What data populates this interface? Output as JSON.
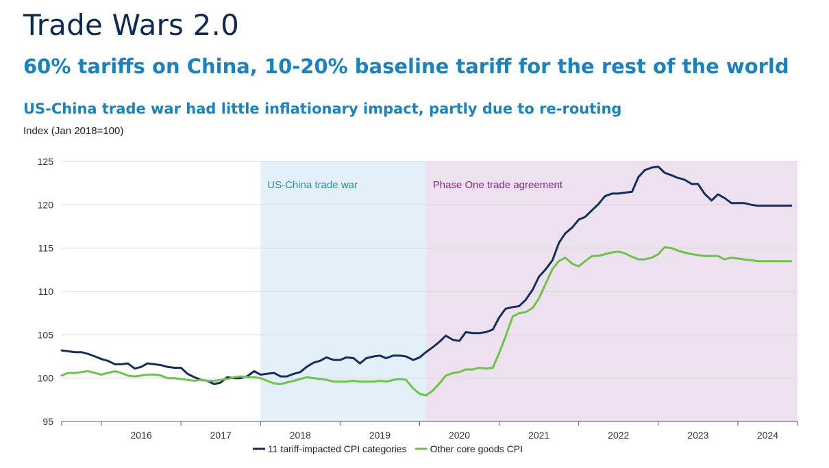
{
  "header": {
    "title": "Trade Wars 2.0",
    "subtitle": "60% tariffs on China, 10-20% baseline tariff for the rest of the world"
  },
  "colors": {
    "title": "#0c2a52",
    "accent": "#1a83bf",
    "series1": "#132d5e",
    "series2": "#6cc24a",
    "trade_war_band": "#e3f0f9",
    "phase_one_band": "#ede0ef",
    "trade_war_text": "#2d8da3",
    "phase_one_text": "#7d2a8a"
  },
  "chart_data": {
    "type": "line",
    "title": "US-China trade war had little inflationary impact, partly due to re-routing",
    "ylabel": "Index (Jan 2018=100)",
    "xlabel": "",
    "ylim": [
      95,
      125
    ],
    "yticks": [
      95,
      100,
      105,
      110,
      115,
      120,
      125
    ],
    "xlim": [
      2015.5,
      2024.75
    ],
    "year_labels": [
      "2016",
      "2017",
      "2018",
      "2019",
      "2020",
      "2021",
      "2022",
      "2023",
      "2024"
    ],
    "shaded_regions": [
      {
        "label": "US-China trade war",
        "start": 2018.0,
        "end": 2020.08
      },
      {
        "label": "Phase One trade agreement",
        "start": 2020.08,
        "end": 2024.75
      }
    ],
    "series": [
      {
        "name": "11 tariff-impacted CPI categories",
        "x": [
          2015.5,
          2015.58,
          2015.67,
          2015.75,
          2015.83,
          2015.92,
          2016.0,
          2016.08,
          2016.17,
          2016.25,
          2016.33,
          2016.42,
          2016.5,
          2016.58,
          2016.67,
          2016.75,
          2016.83,
          2016.92,
          2017.0,
          2017.08,
          2017.17,
          2017.25,
          2017.33,
          2017.42,
          2017.5,
          2017.58,
          2017.67,
          2017.75,
          2017.83,
          2017.92,
          2018.0,
          2018.08,
          2018.17,
          2018.25,
          2018.33,
          2018.42,
          2018.5,
          2018.58,
          2018.67,
          2018.75,
          2018.83,
          2018.92,
          2019.0,
          2019.08,
          2019.17,
          2019.25,
          2019.33,
          2019.42,
          2019.5,
          2019.58,
          2019.67,
          2019.75,
          2019.83,
          2019.92,
          2020.0,
          2020.08,
          2020.17,
          2020.25,
          2020.33,
          2020.42,
          2020.5,
          2020.58,
          2020.67,
          2020.75,
          2020.83,
          2020.92,
          2021.0,
          2021.08,
          2021.17,
          2021.25,
          2021.33,
          2021.42,
          2021.5,
          2021.58,
          2021.67,
          2021.75,
          2021.83,
          2021.92,
          2022.0,
          2022.08,
          2022.17,
          2022.25,
          2022.33,
          2022.42,
          2022.5,
          2022.58,
          2022.67,
          2022.75,
          2022.83,
          2022.92,
          2023.0,
          2023.08,
          2023.17,
          2023.25,
          2023.33,
          2023.42,
          2023.5,
          2023.58,
          2023.67,
          2023.75,
          2023.83,
          2023.92,
          2024.0,
          2024.08,
          2024.17,
          2024.25,
          2024.33,
          2024.42,
          2024.5,
          2024.58,
          2024.67
        ],
        "values": [
          103.2,
          103.1,
          103.0,
          103.0,
          102.8,
          102.5,
          102.2,
          102.0,
          101.6,
          101.6,
          101.7,
          101.1,
          101.3,
          101.7,
          101.6,
          101.5,
          101.3,
          101.2,
          101.2,
          100.5,
          100.1,
          99.8,
          99.7,
          99.3,
          99.5,
          100.1,
          100.0,
          100.0,
          100.2,
          100.8,
          100.4,
          100.5,
          100.6,
          100.2,
          100.2,
          100.5,
          100.7,
          101.3,
          101.8,
          102.0,
          102.4,
          102.1,
          102.1,
          102.4,
          102.3,
          101.7,
          102.3,
          102.5,
          102.6,
          102.3,
          102.6,
          102.6,
          102.5,
          102.1,
          102.4,
          103.0,
          103.6,
          104.2,
          104.9,
          104.4,
          104.3,
          105.3,
          105.2,
          105.2,
          105.3,
          105.6,
          107.0,
          108.0,
          108.2,
          108.3,
          109.0,
          110.2,
          111.7,
          112.5,
          113.6,
          115.6,
          116.7,
          117.4,
          118.3,
          118.6,
          119.4,
          120.1,
          121.0,
          121.3,
          121.3,
          121.4,
          121.5,
          123.2,
          124.0,
          124.3,
          124.4,
          123.7,
          123.4,
          123.1,
          122.9,
          122.4,
          122.4,
          121.3,
          120.5,
          121.2,
          120.8,
          120.2,
          120.2,
          120.2,
          120.0,
          119.9,
          119.9,
          119.9,
          119.9,
          119.9,
          119.9
        ]
      },
      {
        "name": "Other core goods CPI",
        "x": [
          2015.5,
          2015.58,
          2015.67,
          2015.75,
          2015.83,
          2015.92,
          2016.0,
          2016.08,
          2016.17,
          2016.25,
          2016.33,
          2016.42,
          2016.5,
          2016.58,
          2016.67,
          2016.75,
          2016.83,
          2016.92,
          2017.0,
          2017.08,
          2017.17,
          2017.25,
          2017.33,
          2017.42,
          2017.5,
          2017.58,
          2017.67,
          2017.75,
          2017.83,
          2017.92,
          2018.0,
          2018.08,
          2018.17,
          2018.25,
          2018.33,
          2018.42,
          2018.5,
          2018.58,
          2018.67,
          2018.75,
          2018.83,
          2018.92,
          2019.0,
          2019.08,
          2019.17,
          2019.25,
          2019.33,
          2019.42,
          2019.5,
          2019.58,
          2019.67,
          2019.75,
          2019.83,
          2019.92,
          2020.0,
          2020.08,
          2020.17,
          2020.25,
          2020.33,
          2020.42,
          2020.5,
          2020.58,
          2020.67,
          2020.75,
          2020.83,
          2020.92,
          2021.0,
          2021.08,
          2021.17,
          2021.25,
          2021.33,
          2021.42,
          2021.5,
          2021.58,
          2021.67,
          2021.75,
          2021.83,
          2021.92,
          2022.0,
          2022.08,
          2022.17,
          2022.25,
          2022.33,
          2022.42,
          2022.5,
          2022.58,
          2022.67,
          2022.75,
          2022.83,
          2022.92,
          2023.0,
          2023.08,
          2023.17,
          2023.25,
          2023.33,
          2023.42,
          2023.5,
          2023.58,
          2023.67,
          2023.75,
          2023.83,
          2023.92,
          2024.0,
          2024.08,
          2024.17,
          2024.25,
          2024.33,
          2024.42,
          2024.5,
          2024.58,
          2024.67
        ],
        "values": [
          100.3,
          100.6,
          100.6,
          100.7,
          100.8,
          100.6,
          100.4,
          100.6,
          100.8,
          100.6,
          100.3,
          100.2,
          100.3,
          100.4,
          100.4,
          100.3,
          100.0,
          100.0,
          99.9,
          99.8,
          99.7,
          99.8,
          99.7,
          99.7,
          99.8,
          99.9,
          100.1,
          100.2,
          100.1,
          100.1,
          100.0,
          99.7,
          99.4,
          99.3,
          99.5,
          99.7,
          99.9,
          100.1,
          100.0,
          99.9,
          99.8,
          99.6,
          99.6,
          99.6,
          99.7,
          99.6,
          99.6,
          99.6,
          99.7,
          99.6,
          99.8,
          99.9,
          99.8,
          98.8,
          98.2,
          98.0,
          98.6,
          99.4,
          100.3,
          100.6,
          100.7,
          101.0,
          101.0,
          101.2,
          101.1,
          101.2,
          102.9,
          104.8,
          107.1,
          107.5,
          107.6,
          108.1,
          109.2,
          110.8,
          112.6,
          113.5,
          113.9,
          113.2,
          112.9,
          113.5,
          114.1,
          114.1,
          114.3,
          114.5,
          114.6,
          114.4,
          114.0,
          113.7,
          113.7,
          113.9,
          114.3,
          115.1,
          115.0,
          114.7,
          114.5,
          114.3,
          114.2,
          114.1,
          114.1,
          114.1,
          113.7,
          113.9,
          113.8,
          113.7,
          113.6,
          113.5,
          113.5,
          113.5,
          113.5,
          113.5,
          113.5
        ]
      }
    ]
  }
}
